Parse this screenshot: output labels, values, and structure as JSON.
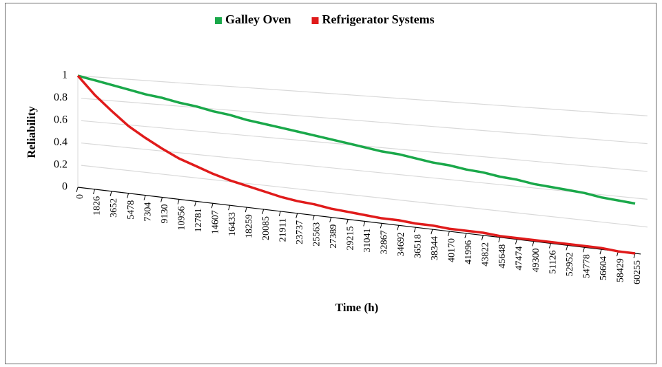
{
  "chart_data": {
    "type": "line",
    "xlabel": "Time (h)",
    "ylabel": "Reliability",
    "categories": [
      "0",
      "1826",
      "3652",
      "5478",
      "7304",
      "9130",
      "10956",
      "12781",
      "14607",
      "16433",
      "18259",
      "20085",
      "21911",
      "23737",
      "25563",
      "27389",
      "29215",
      "31041",
      "32867",
      "34692",
      "36518",
      "38344",
      "40170",
      "41996",
      "43822",
      "45648",
      "47474",
      "49300",
      "51126",
      "52952",
      "54778",
      "56604",
      "58429",
      "60255"
    ],
    "series": [
      {
        "name": "Galley Oven",
        "color": "#1aa84a",
        "values": [
          1.0,
          0.97,
          0.94,
          0.91,
          0.88,
          0.86,
          0.83,
          0.81,
          0.78,
          0.76,
          0.73,
          0.71,
          0.69,
          0.67,
          0.65,
          0.63,
          0.61,
          0.59,
          0.57,
          0.56,
          0.54,
          0.52,
          0.51,
          0.49,
          0.48,
          0.46,
          0.45,
          0.43,
          0.42,
          0.41,
          0.4,
          0.38,
          0.37,
          0.36
        ]
      },
      {
        "name": "Refrigerator Systems",
        "color": "#e01b1b",
        "values": [
          1.0,
          0.84,
          0.71,
          0.59,
          0.5,
          0.42,
          0.35,
          0.3,
          0.25,
          0.21,
          0.18,
          0.15,
          0.12,
          0.1,
          0.09,
          0.07,
          0.06,
          0.05,
          0.04,
          0.04,
          0.03,
          0.03,
          0.02,
          0.02,
          0.02,
          0.01,
          0.01,
          0.01,
          0.01,
          0.01,
          0.01,
          0.01,
          0.0,
          0.0
        ]
      }
    ],
    "ylim": [
      0,
      1
    ],
    "yticks": [
      0,
      0.2,
      0.4,
      0.6,
      0.8,
      1
    ],
    "grid": true,
    "legend": "top"
  }
}
